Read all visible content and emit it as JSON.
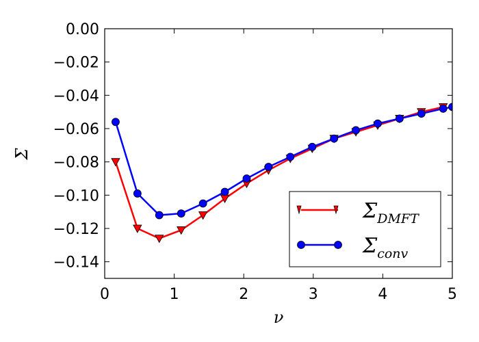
{
  "chart_data": {
    "type": "line",
    "xlabel": "ν",
    "ylabel": "Σ",
    "xlim": [
      0,
      5
    ],
    "ylim": [
      -0.15,
      0.0
    ],
    "x_ticks": [
      "0",
      "1",
      "2",
      "3",
      "4",
      "5"
    ],
    "y_ticks": [
      "0.00",
      "−0.02",
      "−0.04",
      "−0.06",
      "−0.08",
      "−0.10",
      "−0.12",
      "−0.14"
    ],
    "legend_position": "lower-right",
    "grid": false,
    "series": [
      {
        "name": "DMFT",
        "legend_base": "Σ",
        "legend_sub": "DMFT",
        "color": "#ff0000",
        "marker": "triangle-down",
        "x": [
          0.157,
          0.471,
          0.785,
          1.1,
          1.414,
          1.728,
          2.042,
          2.356,
          2.67,
          2.985,
          3.299,
          3.613,
          3.927,
          4.241,
          4.555,
          4.869
        ],
        "y": [
          -0.08,
          -0.12,
          -0.126,
          -0.121,
          -0.112,
          -0.102,
          -0.093,
          -0.085,
          -0.078,
          -0.072,
          -0.066,
          -0.062,
          -0.058,
          -0.054,
          -0.05,
          -0.047
        ]
      },
      {
        "name": "conv",
        "legend_base": "Σ",
        "legend_sub": "conv",
        "color": "#0000ff",
        "marker": "circle",
        "x": [
          0.157,
          0.471,
          0.785,
          1.1,
          1.414,
          1.728,
          2.042,
          2.356,
          2.67,
          2.985,
          3.299,
          3.613,
          3.927,
          4.241,
          4.555,
          4.869,
          5.0
        ],
        "y": [
          -0.056,
          -0.099,
          -0.112,
          -0.111,
          -0.105,
          -0.098,
          -0.09,
          -0.083,
          -0.077,
          -0.071,
          -0.066,
          -0.061,
          -0.057,
          -0.054,
          -0.051,
          -0.048,
          -0.047
        ]
      }
    ]
  }
}
